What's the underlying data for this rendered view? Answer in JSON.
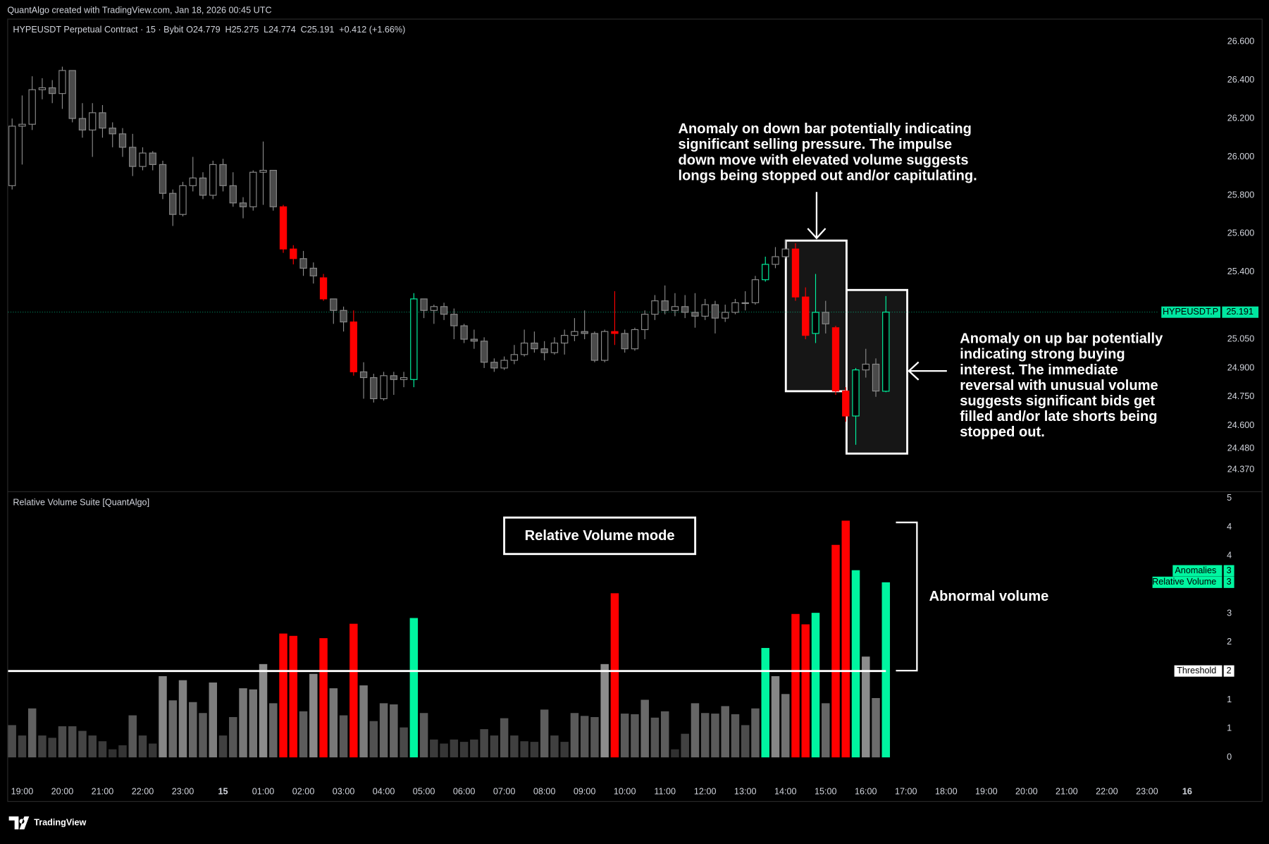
{
  "header": {
    "credit": "QuantAlgo created with TradingView.com, Jan 18, 2026 00:45 UTC"
  },
  "footer": {
    "logo": "TradingView"
  },
  "chart_data": [
    {
      "type": "candlestick",
      "title": "HYPEUSDT Perpetual Contract · 15 · Bybit",
      "readout": [
        "O24.779",
        "H25.275",
        "L24.774",
        "C25.191",
        "+0.412 (+1.66%)"
      ],
      "ylim": [
        24.26,
        26.72
      ],
      "yticks": [
        {
          "value": 26.6,
          "label": "26.600"
        },
        {
          "value": 26.4,
          "label": "26.400"
        },
        {
          "value": 26.2,
          "label": "26.200"
        },
        {
          "value": 26.0,
          "label": "26.000"
        },
        {
          "value": 25.8,
          "label": "25.800"
        },
        {
          "value": 25.6,
          "label": "25.600"
        },
        {
          "value": 25.4,
          "label": "25.400"
        },
        {
          "value": 25.05,
          "label": "25.050"
        },
        {
          "value": 24.9,
          "label": "24.900"
        },
        {
          "value": 24.75,
          "label": "24.750"
        },
        {
          "value": 24.6,
          "label": "24.600"
        },
        {
          "value": 24.48,
          "label": "24.480"
        },
        {
          "value": 24.37,
          "label": "24.370"
        }
      ],
      "series": [
        {
          "name": "HYPEUSDT.P",
          "color": "#8a8a8a",
          "last_color": "#00e6a0",
          "open": [
            25.85,
            26.16,
            26.17,
            26.35,
            26.36,
            26.33,
            26.45,
            26.2,
            26.14,
            26.23,
            26.15,
            26.12,
            26.05,
            25.95,
            26.02,
            25.96,
            25.81,
            25.7,
            25.85,
            25.89,
            25.8,
            25.96,
            25.85,
            25.76,
            25.74,
            25.92,
            25.93,
            25.74,
            25.52,
            25.47,
            25.42,
            25.37,
            25.26,
            25.2,
            25.14,
            24.88,
            24.85,
            24.74,
            24.86,
            24.84,
            24.84,
            25.26,
            25.2,
            25.22,
            25.18,
            25.12,
            25.05,
            25.04,
            24.93,
            24.9,
            24.94,
            24.97,
            25.03,
            25.0,
            24.98,
            25.03,
            25.07,
            25.09,
            25.08,
            24.94,
            25.09,
            25.08,
            25.0,
            25.1,
            25.18,
            25.25,
            25.2,
            25.22,
            25.19,
            25.17,
            25.23,
            25.16,
            25.19,
            25.24,
            25.24,
            25.36,
            25.44,
            25.48,
            25.52,
            25.27,
            25.08,
            25.19,
            25.11,
            24.78,
            24.65,
            24.89,
            24.92,
            24.779
          ],
          "high": [
            26.2,
            26.32,
            26.42,
            26.41,
            26.4,
            26.47,
            26.45,
            26.28,
            26.28,
            26.27,
            26.18,
            26.15,
            26.12,
            26.05,
            26.03,
            25.98,
            25.83,
            25.87,
            26.0,
            25.92,
            25.98,
            25.99,
            25.92,
            25.79,
            25.93,
            26.08,
            25.93,
            25.75,
            25.54,
            25.51,
            25.45,
            25.39,
            25.26,
            25.22,
            25.2,
            24.93,
            24.87,
            24.88,
            24.88,
            24.88,
            25.29,
            25.26,
            25.23,
            25.24,
            25.21,
            25.13,
            25.1,
            25.06,
            24.95,
            24.96,
            25.02,
            25.1,
            25.09,
            25.04,
            25.06,
            25.1,
            25.16,
            25.2,
            25.09,
            25.1,
            25.3,
            25.1,
            25.11,
            25.2,
            25.28,
            25.33,
            25.29,
            25.28,
            25.29,
            25.26,
            25.25,
            25.23,
            25.26,
            25.3,
            25.38,
            25.48,
            25.53,
            25.57,
            25.55,
            25.32,
            25.39,
            25.25,
            25.12,
            24.8,
            24.9,
            25.0,
            24.95,
            25.275
          ],
          "low": [
            25.83,
            25.96,
            26.14,
            26.3,
            26.28,
            26.25,
            26.18,
            26.1,
            26.0,
            26.1,
            26.05,
            26.0,
            25.9,
            25.93,
            25.93,
            25.78,
            25.64,
            25.69,
            25.82,
            25.78,
            25.78,
            25.82,
            25.74,
            25.68,
            25.72,
            25.75,
            25.72,
            25.5,
            25.44,
            25.38,
            25.34,
            25.25,
            25.13,
            25.09,
            24.86,
            24.74,
            24.72,
            24.73,
            24.76,
            24.8,
            24.8,
            25.16,
            25.13,
            25.15,
            25.05,
            25.03,
            25.0,
            24.9,
            24.88,
            24.89,
            24.92,
            24.96,
            24.98,
            24.94,
            24.97,
            24.97,
            25.04,
            25.05,
            24.93,
            24.93,
            25.02,
            24.98,
            24.99,
            25.05,
            25.15,
            25.18,
            25.17,
            25.16,
            25.11,
            25.15,
            25.08,
            25.14,
            25.18,
            25.2,
            25.23,
            25.35,
            25.42,
            25.47,
            25.25,
            25.05,
            25.03,
            25.08,
            24.76,
            24.62,
            24.5,
            24.85,
            24.75,
            24.774
          ],
          "close": [
            26.16,
            26.17,
            26.35,
            26.36,
            26.33,
            26.45,
            26.2,
            26.14,
            26.23,
            26.15,
            26.12,
            26.05,
            25.95,
            26.02,
            25.96,
            25.81,
            25.7,
            25.85,
            25.89,
            25.8,
            25.96,
            25.85,
            25.76,
            25.74,
            25.92,
            25.93,
            25.74,
            25.52,
            25.47,
            25.42,
            25.38,
            25.26,
            25.2,
            25.14,
            24.88,
            24.85,
            24.74,
            24.86,
            24.84,
            24.85,
            25.26,
            25.2,
            25.22,
            25.18,
            25.12,
            25.05,
            25.04,
            24.93,
            24.9,
            24.94,
            24.97,
            25.03,
            25.0,
            24.98,
            25.03,
            25.07,
            25.09,
            25.08,
            24.94,
            25.09,
            25.08,
            25.0,
            25.1,
            25.18,
            25.25,
            25.2,
            25.22,
            25.19,
            25.17,
            25.23,
            25.16,
            25.19,
            25.24,
            25.24,
            25.36,
            25.44,
            25.48,
            25.52,
            25.27,
            25.07,
            25.19,
            25.13,
            24.78,
            24.65,
            24.89,
            24.92,
            24.78,
            25.191
          ],
          "colors": [
            null,
            null,
            null,
            null,
            null,
            null,
            null,
            null,
            null,
            null,
            null,
            null,
            null,
            null,
            null,
            null,
            null,
            null,
            null,
            null,
            null,
            null,
            null,
            null,
            null,
            null,
            null,
            "#ff0000",
            "#ff0000",
            null,
            null,
            "#ff0000",
            null,
            null,
            "#ff0000",
            null,
            null,
            null,
            null,
            null,
            "#00f5a0",
            null,
            null,
            null,
            null,
            null,
            null,
            null,
            null,
            null,
            null,
            null,
            null,
            null,
            null,
            null,
            null,
            null,
            null,
            null,
            "#ff0000",
            null,
            null,
            null,
            null,
            null,
            null,
            null,
            null,
            null,
            null,
            null,
            null,
            null,
            null,
            "#00f5a0",
            null,
            null,
            "#ff0000",
            "#ff0000",
            "#00f5a0",
            null,
            "#ff0000",
            "#ff0000",
            "#00f5a0",
            null,
            null,
            "#00f5a0"
          ]
        }
      ],
      "annotations": [
        {
          "lines": [
            "Anomaly on down bar potentially indicating",
            "significant selling pressure. The impulse",
            "down move with elevated volume suggests",
            "longs being stopped out and/or capitulating."
          ]
        },
        {
          "lines": [
            "Anomaly on up bar potentially",
            "indicating strong buying",
            "interest. The immediate",
            "reversal with unusual volume",
            "suggests significant bids get",
            "filled and/or late shorts being",
            "stopped out."
          ]
        }
      ]
    },
    {
      "type": "bar",
      "title": "Relative Volume Suite [QuantAlgo]",
      "mode_label": "Relative Volume mode",
      "annotation": "Abnormal volume",
      "xlim": [
        -0.4,
        124.5
      ],
      "xticks": [
        {
          "value": 1,
          "label": "19:00"
        },
        {
          "value": 5,
          "label": "20:00"
        },
        {
          "value": 9,
          "label": "21:00"
        },
        {
          "value": 13,
          "label": "22:00"
        },
        {
          "value": 17,
          "label": "23:00"
        },
        {
          "value": 21,
          "label": "15"
        },
        {
          "value": 25,
          "label": "01:00"
        },
        {
          "value": 29,
          "label": "02:00"
        },
        {
          "value": 33,
          "label": "03:00"
        },
        {
          "value": 37,
          "label": "04:00"
        },
        {
          "value": 41,
          "label": "05:00"
        },
        {
          "value": 45,
          "label": "06:00"
        },
        {
          "value": 49,
          "label": "07:00"
        },
        {
          "value": 53,
          "label": "08:00"
        },
        {
          "value": 57,
          "label": "09:00"
        },
        {
          "value": 61,
          "label": "10:00"
        },
        {
          "value": 65,
          "label": "11:00"
        },
        {
          "value": 69,
          "label": "12:00"
        },
        {
          "value": 73,
          "label": "13:00"
        },
        {
          "value": 77,
          "label": "14:00"
        },
        {
          "value": 81,
          "label": "15:00"
        },
        {
          "value": 85,
          "label": "16:00"
        },
        {
          "value": 89,
          "label": "17:00"
        },
        {
          "value": 93,
          "label": "18:00"
        },
        {
          "value": 97,
          "label": "19:00"
        },
        {
          "value": 101,
          "label": "20:00"
        },
        {
          "value": 105,
          "label": "21:00"
        },
        {
          "value": 109,
          "label": "22:00"
        },
        {
          "value": 113,
          "label": "23:00"
        },
        {
          "value": 117,
          "label": "16"
        }
      ],
      "ylim": [
        -0.35,
        4.6
      ],
      "yticks": [
        0,
        {
          "value": 0.5,
          "label": "1"
        },
        {
          "value": 1,
          "label": "1"
        },
        {
          "value": 2,
          "label": "2"
        },
        {
          "value": 2.5,
          "label": "3"
        },
        {
          "value": 3.5,
          "label": "4"
        },
        {
          "value": 4,
          "label": "4"
        },
        {
          "value": 4.5,
          "label": "5"
        }
      ],
      "gray_range": [
        "#262626",
        "#8c8c8c"
      ],
      "threshold": {
        "name": "Threshold",
        "value": 1.5,
        "label": "2",
        "color": "#ffffff"
      },
      "tags": [
        {
          "name": "Anomalies",
          "value": 3.24,
          "label": "3",
          "color": "#00f5a0"
        }
      ],
      "series": [
        {
          "name": "Relative Volume",
          "last_label": "3",
          "color": "#00f5a0",
          "values": [
            0.56,
            0.38,
            0.85,
            0.38,
            0.34,
            0.54,
            0.54,
            0.46,
            0.38,
            0.28,
            0.14,
            0.21,
            0.73,
            0.38,
            0.24,
            1.41,
            0.99,
            1.34,
            0.96,
            0.77,
            1.3,
            0.38,
            0.7,
            1.2,
            1.18,
            1.62,
            0.94,
            2.15,
            2.11,
            0.8,
            1.45,
            2.07,
            1.2,
            0.73,
            2.32,
            1.25,
            0.63,
            0.94,
            0.92,
            0.52,
            2.42,
            0.77,
            0.31,
            0.24,
            0.31,
            0.27,
            0.31,
            0.49,
            0.38,
            0.68,
            0.38,
            0.28,
            0.27,
            0.83,
            0.38,
            0.27,
            0.77,
            0.72,
            0.7,
            1.62,
            2.85,
            0.76,
            0.75,
            1.0,
            0.69,
            0.8,
            0.14,
            0.41,
            0.94,
            0.77,
            0.76,
            0.89,
            0.75,
            0.56,
            0.85,
            1.9,
            1.41,
            1.1,
            2.49,
            2.31,
            2.51,
            0.94,
            3.69,
            4.11,
            3.25,
            1.75,
            1.03,
            3.04
          ]
        }
      ]
    }
  ]
}
